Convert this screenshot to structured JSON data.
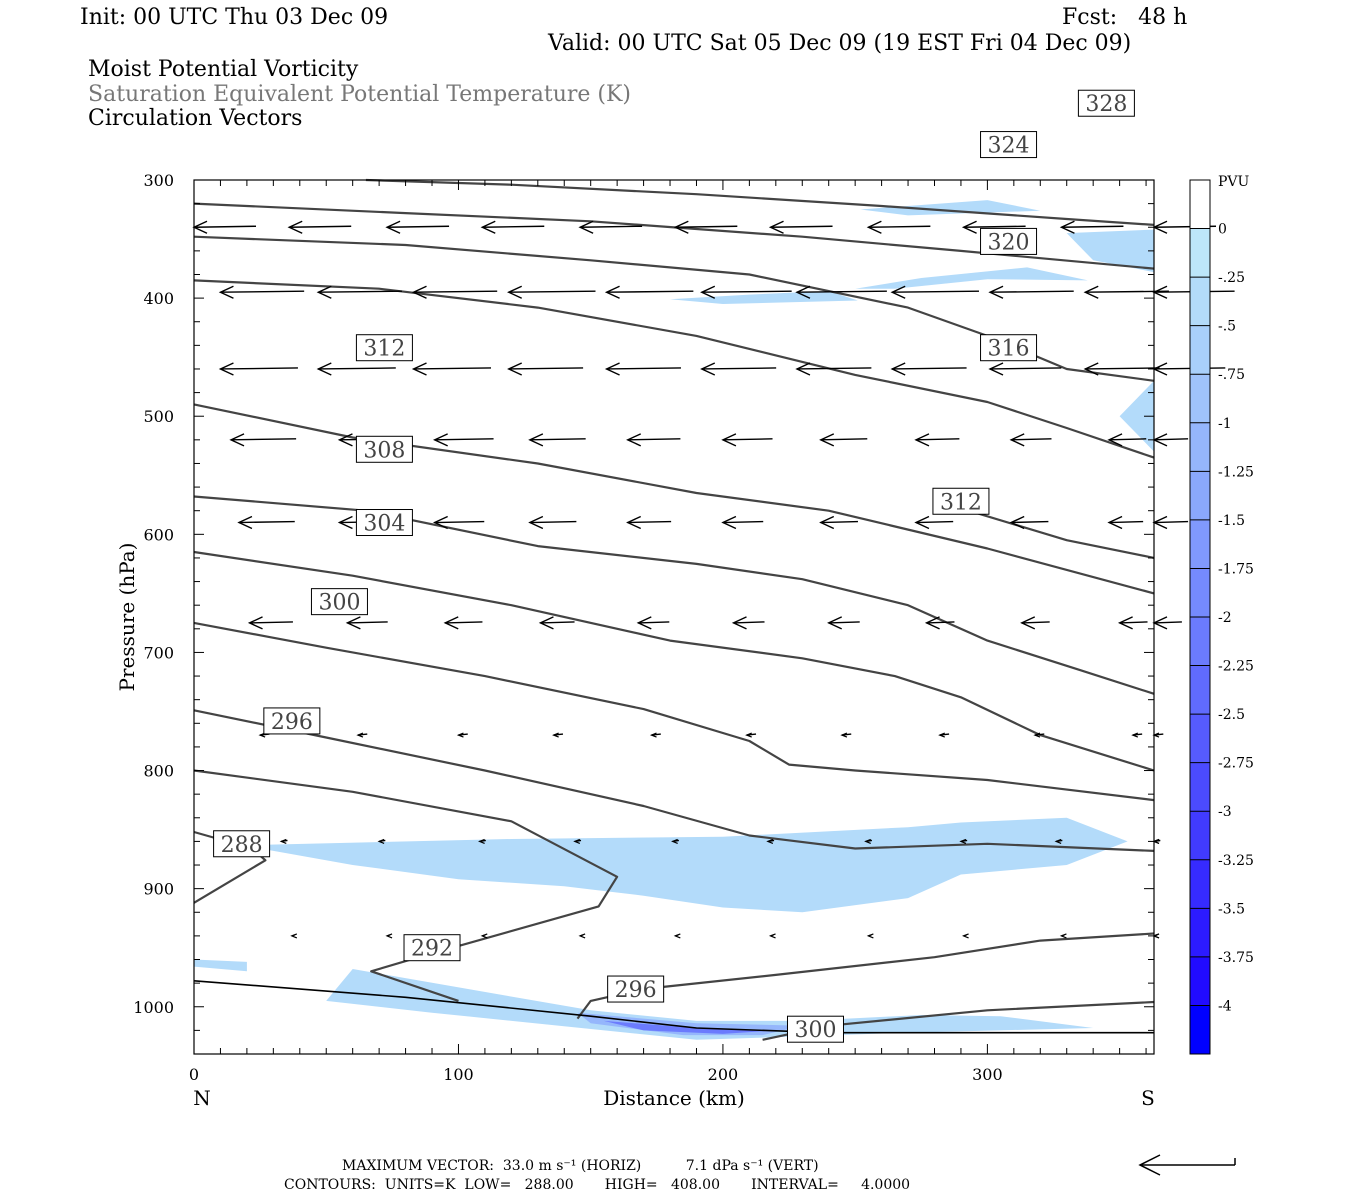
{
  "header": {
    "init": "Init: 00 UTC Thu 03 Dec 09",
    "fcst": "Fcst:   48 h",
    "valid": "Valid: 00 UTC Sat 05 Dec 09 (19 EST Fri 04 Dec 09)",
    "field1": "Moist Potential Vorticity",
    "field2": "Saturation Equivalent Potential Temperature (K)",
    "field3": "Circulation Vectors"
  },
  "footer": {
    "max_vector": "MAXIMUM VECTOR:  33.0 m s⁻¹ (HORIZ)          7.1 dPa s⁻¹ (VERT)",
    "contours": "CONTOURS:  UNITS=K  LOW=   288.00       HIGH=   408.00       INTERVAL=     4.0000"
  },
  "colors": {
    "contour": "#444444",
    "shade_light": "#bde6fa",
    "text_gray": "#777777"
  },
  "chart_data": {
    "type": "contour",
    "xlabel": "Distance (km)",
    "ylabel": "Pressure (hPa)",
    "xlim": [
      0,
      363
    ],
    "ylim": [
      1040,
      300
    ],
    "xticks": [
      0,
      100,
      200,
      300
    ],
    "yticks": [
      300,
      400,
      500,
      600,
      700,
      800,
      900,
      1000
    ],
    "end_labels": {
      "left": "N",
      "right": "S"
    },
    "legend": {
      "title": "PVU",
      "levels": [
        "0",
        "-.25",
        "-.5",
        "-.75",
        "-1",
        "-1.25",
        "-1.5",
        "-1.75",
        "-2",
        "-2.25",
        "-2.5",
        "-2.75",
        "-3",
        "-3.25",
        "-3.5",
        "-3.75",
        "-4"
      ],
      "colors": [
        "#ffffff",
        "#bde6fa",
        "#b3dbfa",
        "#a9d0fb",
        "#9fc3fb",
        "#95b6fc",
        "#8aa8fc",
        "#8099fd",
        "#758afd",
        "#6b7bfd",
        "#606bfd",
        "#565bfe",
        "#4b4bfe",
        "#413bfe",
        "#362bff",
        "#2c1bff",
        "#210bff",
        "#0000ff"
      ]
    },
    "contours": [
      {
        "value": 288,
        "label": "288",
        "label_at": [
          18,
          862
        ],
        "points": [
          [
            0,
            852
          ],
          [
            22,
            866
          ],
          [
            27,
            876
          ],
          [
            0,
            912
          ]
        ]
      },
      {
        "value": 292,
        "label": "292",
        "label_at": [
          90,
          950
        ],
        "points": [
          [
            0,
            800
          ],
          [
            60,
            818
          ],
          [
            120,
            843
          ],
          [
            160,
            890
          ],
          [
            153,
            915
          ],
          [
            85,
            958
          ],
          [
            67,
            970
          ],
          [
            100,
            995
          ]
        ]
      },
      {
        "value": 296,
        "label": "296",
        "label_at": [
          37,
          758
        ],
        "points": [
          [
            0,
            749
          ],
          [
            50,
            772
          ],
          [
            110,
            800
          ],
          [
            170,
            830
          ],
          [
            210,
            855
          ],
          [
            250,
            866
          ],
          [
            300,
            862
          ],
          [
            363,
            868
          ]
        ]
      },
      {
        "value": 296,
        "label": "296",
        "label_at": [
          167,
          985
        ],
        "points": [
          [
            145,
            1010
          ],
          [
            150,
            995
          ],
          [
            170,
            985
          ],
          [
            220,
            973
          ],
          [
            280,
            958
          ],
          [
            320,
            944
          ],
          [
            363,
            938
          ]
        ]
      },
      {
        "value": 300,
        "label": "300",
        "label_at": [
          55,
          657
        ],
        "points": [
          [
            0,
            675
          ],
          [
            50,
            696
          ],
          [
            110,
            720
          ],
          [
            170,
            748
          ],
          [
            210,
            775
          ],
          [
            225,
            795
          ],
          [
            250,
            800
          ],
          [
            300,
            808
          ],
          [
            363,
            825
          ]
        ]
      },
      {
        "value": 300,
        "label": "300",
        "label_at": [
          235,
          1019
        ],
        "points": [
          [
            215,
            1028
          ],
          [
            240,
            1016
          ],
          [
            300,
            1003
          ],
          [
            363,
            996
          ]
        ]
      },
      {
        "value": 304,
        "label": "304",
        "label_at": [
          72,
          590
        ],
        "points": [
          [
            0,
            615
          ],
          [
            60,
            635
          ],
          [
            120,
            660
          ],
          [
            180,
            690
          ],
          [
            230,
            705
          ],
          [
            265,
            720
          ],
          [
            290,
            738
          ],
          [
            320,
            770
          ],
          [
            363,
            800
          ]
        ]
      },
      {
        "value": 308,
        "label": "308",
        "label_at": [
          72,
          528
        ],
        "points": [
          [
            0,
            568
          ],
          [
            65,
            580
          ],
          [
            130,
            610
          ],
          [
            190,
            625
          ],
          [
            230,
            638
          ],
          [
            270,
            660
          ],
          [
            300,
            690
          ],
          [
            335,
            715
          ],
          [
            363,
            735
          ]
        ]
      },
      {
        "value": 312,
        "label": "312",
        "label_at": [
          72,
          442
        ],
        "points": [
          [
            0,
            490
          ],
          [
            60,
            518
          ],
          [
            130,
            540
          ],
          [
            190,
            565
          ],
          [
            240,
            580
          ],
          [
            300,
            612
          ],
          [
            363,
            650
          ]
        ]
      },
      {
        "value": 312,
        "label": "312",
        "label_at": [
          290,
          572
        ],
        "points": [
          [
            290,
            578
          ],
          [
            330,
            605
          ],
          [
            363,
            620
          ]
        ]
      },
      {
        "value": 316,
        "label": "316",
        "label_at": [
          308,
          442
        ],
        "points": [
          [
            0,
            385
          ],
          [
            70,
            392
          ],
          [
            130,
            408
          ],
          [
            190,
            432
          ],
          [
            250,
            465
          ],
          [
            300,
            488
          ],
          [
            330,
            510
          ],
          [
            363,
            535
          ]
        ]
      },
      {
        "value": 320,
        "label": "320",
        "label_at": [
          308,
          352
        ],
        "points": [
          [
            0,
            348
          ],
          [
            80,
            355
          ],
          [
            150,
            368
          ],
          [
            210,
            380
          ],
          [
            270,
            408
          ],
          [
            300,
            432
          ],
          [
            330,
            460
          ],
          [
            363,
            470
          ]
        ]
      },
      {
        "value": 324,
        "label": "324",
        "label_at": [
          308,
          270
        ],
        "points": [
          [
            0,
            320
          ],
          [
            80,
            328
          ],
          [
            150,
            335
          ],
          [
            230,
            348
          ],
          [
            290,
            360
          ],
          [
            363,
            375
          ]
        ]
      },
      {
        "value": 328,
        "label": "328",
        "label_at": [
          345,
          235
        ],
        "points": [
          [
            65,
            300
          ],
          [
            120,
            304
          ],
          [
            190,
            312
          ],
          [
            260,
            322
          ],
          [
            330,
            333
          ],
          [
            363,
            338
          ]
        ]
      }
    ],
    "shaded_regions": [
      {
        "level": "-.25",
        "points": [
          [
            25,
            863
          ],
          [
            120,
            858
          ],
          [
            200,
            856
          ],
          [
            270,
            848
          ],
          [
            290,
            844
          ],
          [
            330,
            840
          ],
          [
            353,
            860
          ],
          [
            330,
            880
          ],
          [
            290,
            888
          ],
          [
            270,
            908
          ],
          [
            230,
            920
          ],
          [
            200,
            916
          ],
          [
            170,
            906
          ],
          [
            140,
            898
          ],
          [
            100,
            892
          ],
          [
            60,
            880
          ],
          [
            25,
            866
          ]
        ]
      },
      {
        "level": "-.25",
        "points": [
          [
            60,
            968
          ],
          [
            150,
            1003
          ],
          [
            190,
            1012
          ],
          [
            230,
            1012
          ],
          [
            275,
            1007
          ],
          [
            305,
            1008
          ],
          [
            340,
            1018
          ],
          [
            270,
            1022
          ],
          [
            190,
            1028
          ],
          [
            90,
            1005
          ],
          [
            50,
            995
          ]
        ]
      },
      {
        "level": "-.25",
        "points": [
          [
            250,
            392
          ],
          [
            275,
            383
          ],
          [
            315,
            374
          ],
          [
            338,
            385
          ],
          [
            300,
            384
          ],
          [
            265,
            392
          ]
        ]
      },
      {
        "level": "-.25",
        "points": [
          [
            180,
            401
          ],
          [
            210,
            397
          ],
          [
            240,
            394
          ],
          [
            251,
            402
          ],
          [
            200,
            405
          ]
        ]
      },
      {
        "level": "-.25",
        "points": [
          [
            252,
            325
          ],
          [
            300,
            317
          ],
          [
            320,
            326
          ],
          [
            270,
            330
          ]
        ]
      },
      {
        "level": "-.25",
        "points": [
          [
            330,
            345
          ],
          [
            363,
            342
          ],
          [
            363,
            378
          ],
          [
            340,
            368
          ]
        ]
      },
      {
        "level": "-.25",
        "points": [
          [
            363,
            470
          ],
          [
            350,
            500
          ],
          [
            363,
            530
          ]
        ]
      },
      {
        "level": "-.25",
        "points": [
          [
            0,
            960
          ],
          [
            20,
            962
          ],
          [
            20,
            970
          ],
          [
            0,
            966
          ]
        ]
      },
      {
        "level": "-1",
        "points": [
          [
            145,
            1005
          ],
          [
            190,
            1014
          ],
          [
            230,
            1016
          ],
          [
            215,
            1024
          ],
          [
            185,
            1024
          ],
          [
            150,
            1014
          ]
        ]
      },
      {
        "level": "-2",
        "points": [
          [
            155,
            1012
          ],
          [
            190,
            1018
          ],
          [
            220,
            1020
          ],
          [
            200,
            1023
          ],
          [
            170,
            1020
          ]
        ]
      }
    ],
    "vectors": [
      {
        "row_p": 340,
        "u": [
          -20,
          -20,
          -20,
          -20,
          -20,
          -20,
          -20,
          -20,
          -20,
          -20,
          -20
        ],
        "x": [
          0,
          36,
          73,
          109,
          146,
          182,
          218,
          255,
          291,
          328,
          363
        ]
      },
      {
        "row_p": 395,
        "u": [
          -27,
          -27,
          -27,
          -28,
          -28,
          -29,
          -29,
          -28,
          -27,
          -27,
          -26
        ],
        "x": [
          10,
          47,
          83,
          119,
          156,
          192,
          228,
          264,
          301,
          337,
          363
        ]
      },
      {
        "row_p": 460,
        "u": [
          -25,
          -25,
          -25,
          -24,
          -24,
          -24,
          -24,
          -24,
          -23,
          -24,
          -23
        ],
        "x": [
          10,
          47,
          83,
          119,
          156,
          192,
          228,
          264,
          301,
          337,
          363
        ]
      },
      {
        "row_p": 520,
        "u": [
          -21,
          -20,
          -19,
          -18,
          -17,
          -16,
          -15,
          -14,
          -13,
          -12,
          -11
        ],
        "x": [
          14,
          55,
          91,
          127,
          164,
          200,
          237,
          273,
          309,
          346,
          363
        ]
      },
      {
        "row_p": 590,
        "u": [
          -18,
          -17,
          -16,
          -15,
          -14,
          -13,
          -12,
          -12,
          -12,
          -11,
          -11
        ],
        "x": [
          17,
          55,
          91,
          127,
          164,
          200,
          237,
          273,
          309,
          346,
          363
        ]
      },
      {
        "row_p": 675,
        "u": [
          -14,
          -13,
          -12,
          -11,
          -10,
          -10,
          -10,
          -9,
          -9,
          -9,
          -9
        ],
        "x": [
          21,
          58,
          95,
          131,
          168,
          204,
          240,
          277,
          313,
          350,
          363
        ]
      },
      {
        "row_p": 770,
        "u": [
          -3,
          -3,
          -3,
          -3,
          -3,
          -3,
          -3,
          -3,
          -3,
          -3,
          -3
        ],
        "x": [
          25,
          62,
          100,
          136,
          173,
          209,
          245,
          282,
          318,
          355,
          363
        ]
      },
      {
        "row_p": 860,
        "u": [
          -2,
          -2,
          -2,
          -2,
          -2,
          -2,
          -2,
          -2,
          -2,
          -2,
          -2
        ],
        "x": [
          33,
          70,
          108,
          144,
          181,
          217,
          254,
          290,
          326,
          363,
          363
        ]
      },
      {
        "row_p": 940,
        "u": [
          -1,
          -1,
          -1,
          -1,
          -1,
          -1,
          -1,
          -1,
          -1,
          -1,
          -1
        ],
        "x": [
          37,
          73,
          109,
          146,
          182,
          218,
          255,
          291,
          328,
          363,
          363
        ]
      }
    ]
  }
}
